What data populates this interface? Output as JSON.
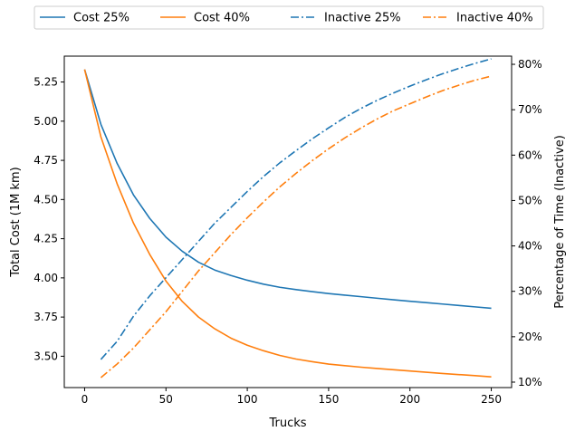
{
  "chart_data": {
    "type": "line",
    "title": "",
    "xlabel": "Trucks",
    "ylabel_left": "Total Cost (1M km)",
    "ylabel_right": "Percentage of Time (Inactive)",
    "xlim": [
      -12.5,
      262.5
    ],
    "ylim_left": [
      3.3,
      5.415
    ],
    "ylim_right": [
      0.088,
      0.818
    ],
    "xticks": [
      0,
      50,
      100,
      150,
      200,
      250
    ],
    "xtick_labels": [
      "0",
      "50",
      "100",
      "150",
      "200",
      "250"
    ],
    "yticks_left": [
      3.5,
      3.75,
      4.0,
      4.25,
      4.5,
      4.75,
      5.0,
      5.25
    ],
    "ytick_labels_left": [
      "3.50",
      "3.75",
      "4.00",
      "4.25",
      "4.50",
      "4.75",
      "5.00",
      "5.25"
    ],
    "yticks_right": [
      0.1,
      0.2,
      0.3,
      0.4,
      0.5,
      0.6,
      0.7,
      0.8
    ],
    "ytick_labels_right": [
      "10%",
      "20%",
      "30%",
      "40%",
      "50%",
      "60%",
      "70%",
      "80%"
    ],
    "legend_position": "top",
    "colors": {
      "blue": "#1f77b4",
      "orange": "#ff7f0e"
    },
    "series": [
      {
        "name": "Cost 25%",
        "axis": "left",
        "style": "solid",
        "color": "#1f77b4",
        "x": [
          0,
          10,
          20,
          30,
          40,
          50,
          60,
          70,
          80,
          90,
          100,
          110,
          120,
          130,
          140,
          150,
          160,
          170,
          180,
          190,
          200,
          210,
          220,
          230,
          240,
          250
        ],
        "y": [
          5.33,
          4.98,
          4.73,
          4.53,
          4.38,
          4.26,
          4.17,
          4.1,
          4.05,
          4.015,
          3.985,
          3.96,
          3.94,
          3.925,
          3.912,
          3.9,
          3.89,
          3.88,
          3.87,
          3.86,
          3.851,
          3.842,
          3.833,
          3.824,
          3.815,
          3.806
        ]
      },
      {
        "name": "Cost 40%",
        "axis": "left",
        "style": "solid",
        "color": "#ff7f0e",
        "x": [
          0,
          10,
          20,
          30,
          40,
          50,
          60,
          70,
          80,
          90,
          100,
          110,
          120,
          130,
          140,
          150,
          160,
          170,
          180,
          190,
          200,
          210,
          220,
          230,
          240,
          250
        ],
        "y": [
          5.33,
          4.9,
          4.6,
          4.35,
          4.15,
          3.98,
          3.85,
          3.75,
          3.675,
          3.615,
          3.57,
          3.535,
          3.505,
          3.482,
          3.465,
          3.45,
          3.44,
          3.43,
          3.422,
          3.414,
          3.406,
          3.398,
          3.39,
          3.383,
          3.376,
          3.368
        ]
      },
      {
        "name": "Inactive 25%",
        "axis": "right",
        "style": "dashdot",
        "color": "#1f77b4",
        "x": [
          10,
          20,
          30,
          40,
          50,
          60,
          70,
          80,
          90,
          100,
          110,
          120,
          130,
          140,
          150,
          160,
          170,
          180,
          190,
          200,
          210,
          220,
          230,
          240,
          250
        ],
        "y": [
          0.15,
          0.19,
          0.245,
          0.29,
          0.33,
          0.37,
          0.41,
          0.45,
          0.485,
          0.52,
          0.553,
          0.583,
          0.61,
          0.636,
          0.66,
          0.683,
          0.703,
          0.721,
          0.737,
          0.752,
          0.766,
          0.779,
          0.791,
          0.802,
          0.812
        ]
      },
      {
        "name": "Inactive 40%",
        "axis": "right",
        "style": "dashdot",
        "color": "#ff7f0e",
        "x": [
          10,
          20,
          30,
          40,
          50,
          60,
          70,
          80,
          90,
          100,
          110,
          120,
          130,
          140,
          150,
          160,
          170,
          180,
          190,
          200,
          210,
          220,
          230,
          240,
          250
        ],
        "y": [
          0.11,
          0.14,
          0.175,
          0.215,
          0.255,
          0.3,
          0.345,
          0.385,
          0.425,
          0.462,
          0.497,
          0.53,
          0.56,
          0.588,
          0.614,
          0.638,
          0.66,
          0.68,
          0.698,
          0.713,
          0.728,
          0.742,
          0.754,
          0.765,
          0.774
        ]
      }
    ]
  }
}
